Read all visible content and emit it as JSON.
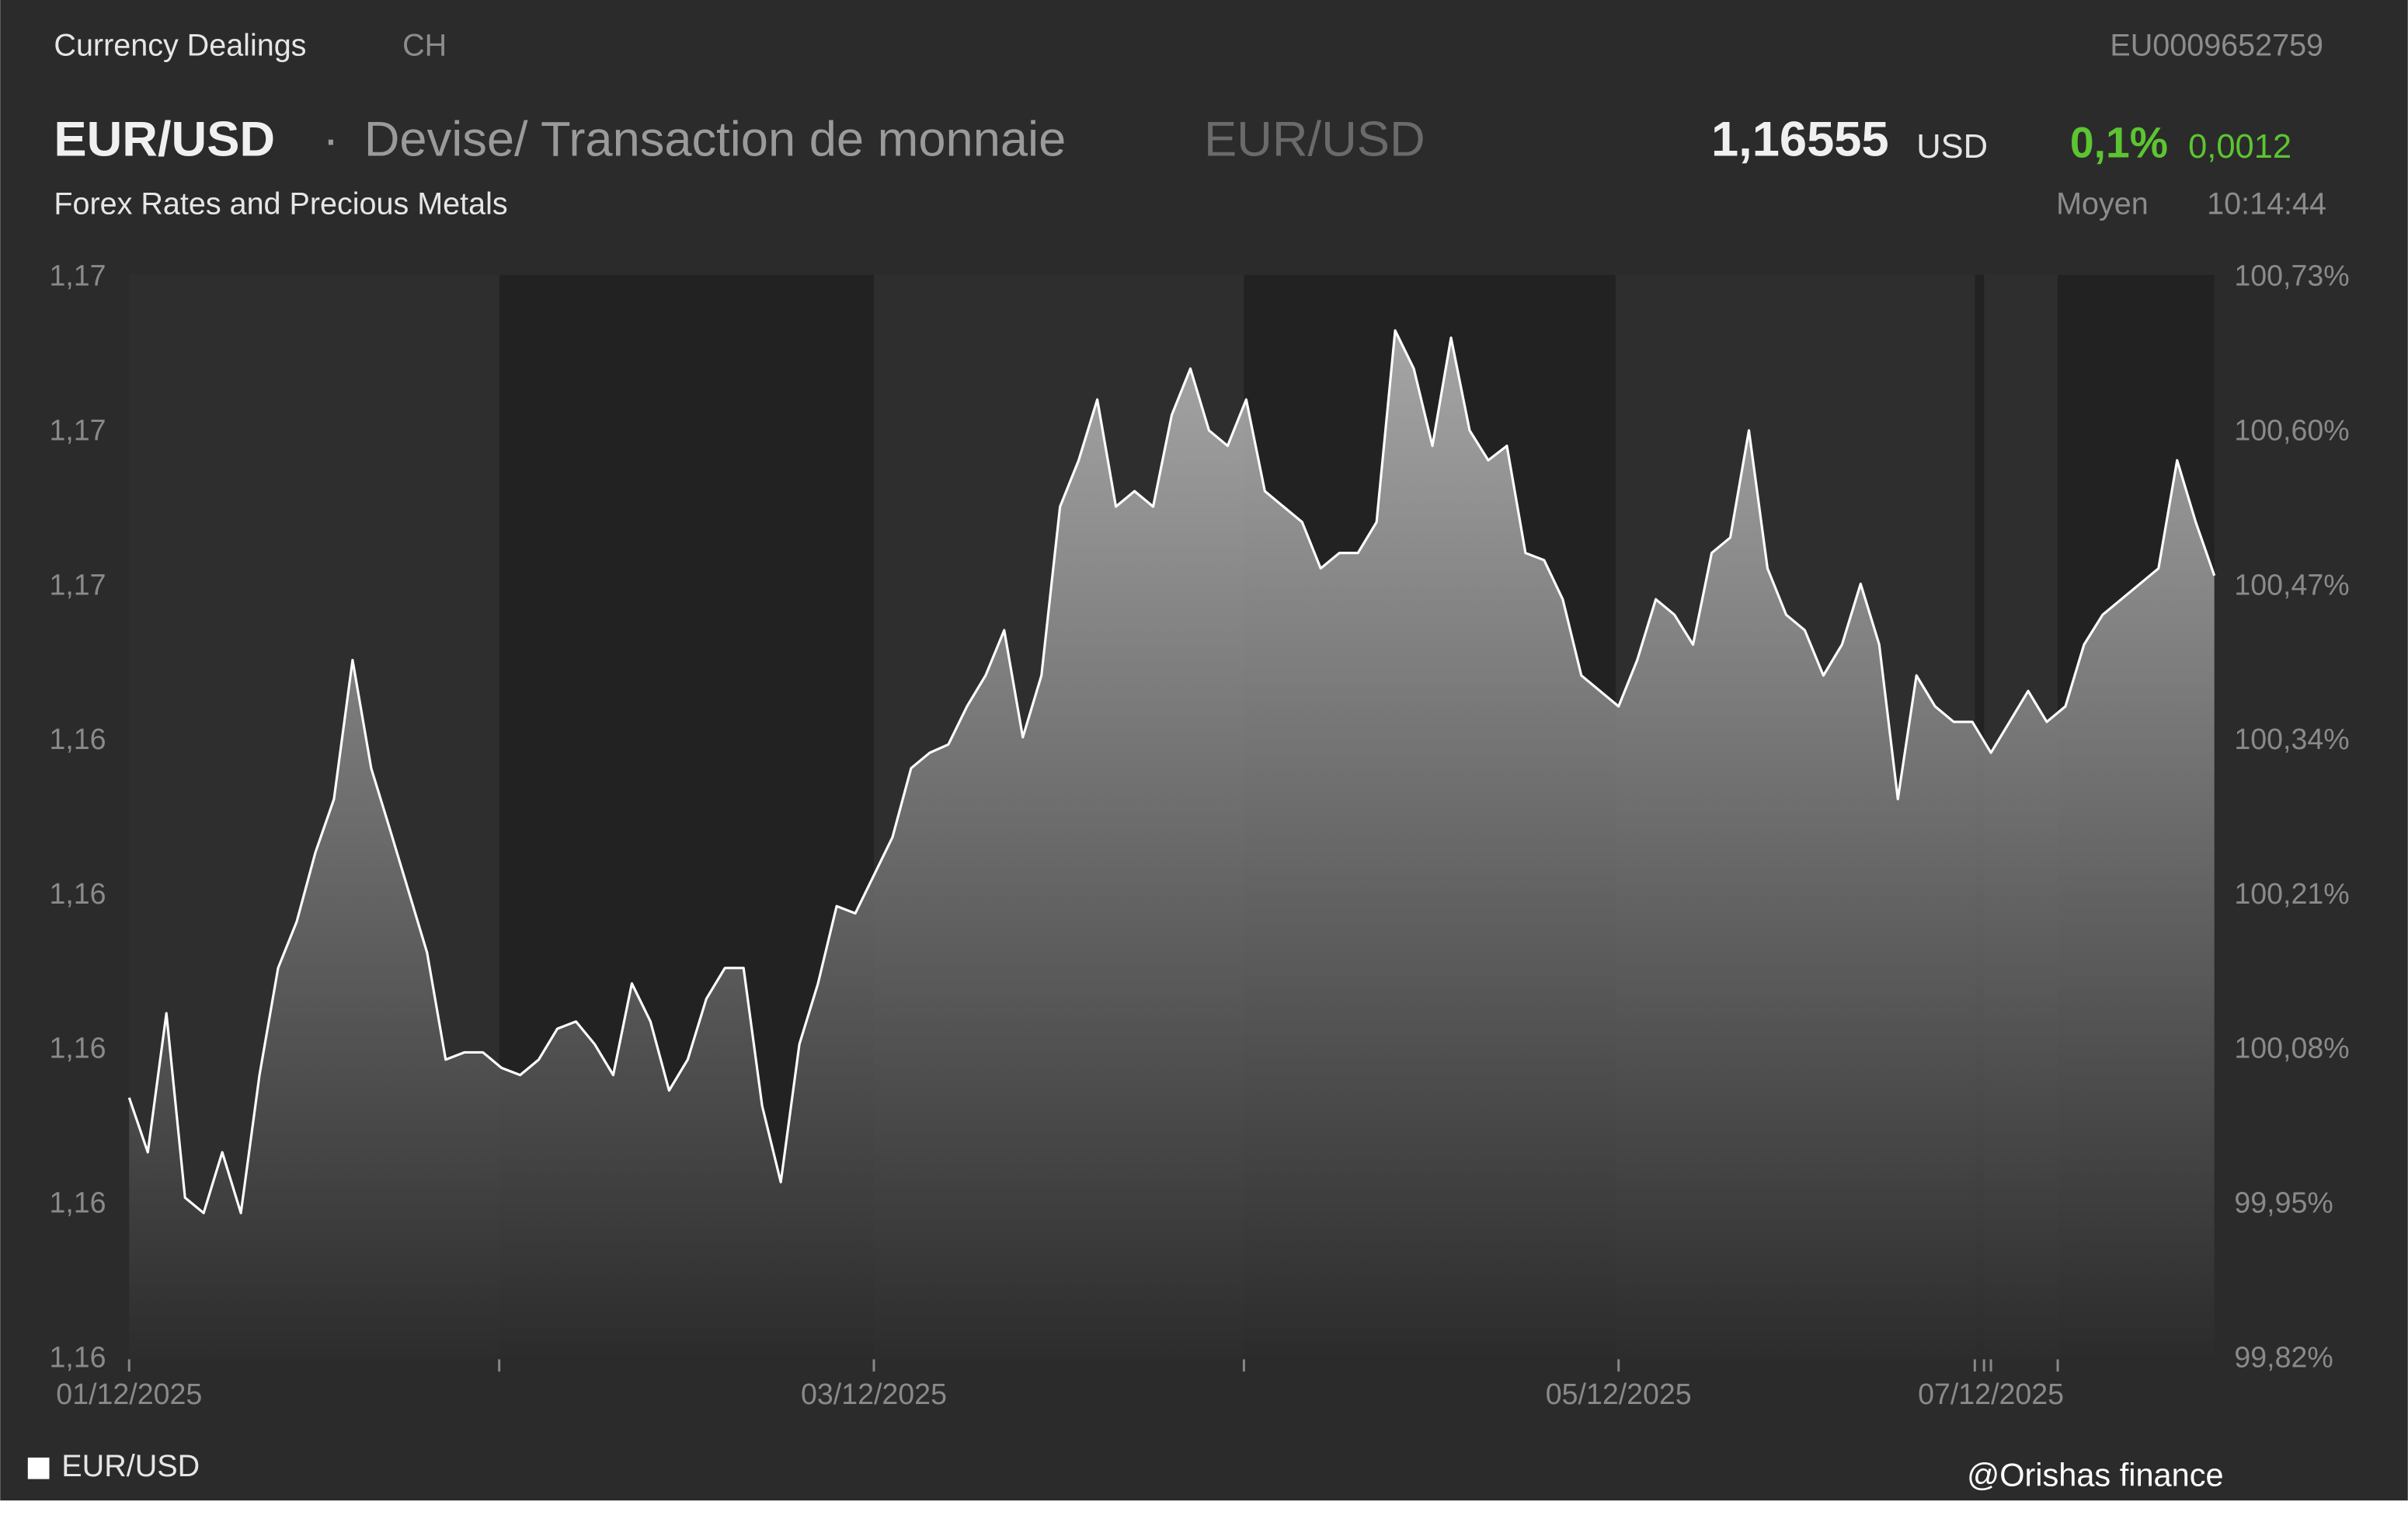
{
  "header": {
    "section": "Currency Dealings",
    "country": "CH",
    "isin": "EU0009652759",
    "symbol": "EUR/USD",
    "separator": "·",
    "description": "Devise/ Transaction de monnaie",
    "symbol_alt": "EUR/USD",
    "price": "1,16555",
    "currency": "USD",
    "change_pct": "0,1%",
    "change_abs": "0,0012",
    "subtitle": "Forex Rates and Precious Metals",
    "price_type": "Moyen",
    "time": "10:14:44"
  },
  "chart_data": {
    "type": "area",
    "categories": [
      "01/12/2025",
      null,
      null,
      null,
      null,
      null,
      null,
      null,
      null,
      null,
      null,
      null,
      null,
      null,
      null,
      null,
      null,
      null,
      null,
      null,
      null,
      null,
      null,
      null,
      null,
      null,
      null,
      null,
      null,
      null,
      null,
      null,
      null,
      null,
      null,
      null,
      null,
      null,
      null,
      null,
      "03/12/2025",
      null,
      null,
      null,
      null,
      null,
      null,
      null,
      null,
      null,
      null,
      null,
      null,
      null,
      null,
      null,
      null,
      null,
      null,
      null,
      null,
      null,
      null,
      null,
      null,
      null,
      null,
      null,
      null,
      null,
      null,
      null,
      null,
      null,
      null,
      null,
      null,
      null,
      null,
      null,
      "05/12/2025",
      null,
      null,
      null,
      null,
      null,
      null,
      null,
      null,
      null,
      null,
      null,
      null,
      null,
      null,
      null,
      null,
      null,
      null,
      null,
      "07/12/2025",
      null,
      null,
      null,
      null,
      null,
      null,
      null,
      null,
      null,
      null,
      null,
      null
    ],
    "series": [
      {
        "name": "EUR/USD",
        "color": "#ffffff",
        "values": [
          1.16004,
          1.15951,
          1.16086,
          1.15907,
          1.15892,
          1.15951,
          1.15892,
          1.16026,
          1.1613,
          1.16175,
          1.16242,
          1.16294,
          1.16429,
          1.16324,
          1.16265,
          1.16205,
          1.16145,
          1.16041,
          1.16048,
          1.16048,
          1.16033,
          1.16026,
          1.16041,
          1.16071,
          1.16078,
          1.16056,
          1.16026,
          1.16115,
          1.16078,
          1.16011,
          1.16041,
          1.161,
          1.1613,
          1.1613,
          1.15996,
          1.15922,
          1.16056,
          1.16115,
          1.1619,
          1.16183,
          1.1622,
          1.16257,
          1.16324,
          1.16339,
          1.16347,
          1.16384,
          1.16414,
          1.16458,
          1.16354,
          1.16414,
          1.16578,
          1.16623,
          1.16682,
          1.16578,
          1.16593,
          1.16578,
          1.16667,
          1.16712,
          1.16652,
          1.16637,
          1.16682,
          1.16593,
          1.16578,
          1.16563,
          1.16518,
          1.16533,
          1.16533,
          1.16563,
          1.16749,
          1.16712,
          1.16637,
          1.16742,
          1.16652,
          1.16623,
          1.16637,
          1.16533,
          1.16526,
          1.16488,
          1.16414,
          1.16399,
          1.16384,
          1.16429,
          1.16488,
          1.16473,
          1.16444,
          1.16533,
          1.16548,
          1.16652,
          1.16518,
          1.16473,
          1.16458,
          1.16414,
          1.16444,
          1.16503,
          1.16444,
          1.16294,
          1.16414,
          1.16384,
          1.16369,
          1.16369,
          1.16339,
          1.16369,
          1.16399,
          1.16369,
          1.16384,
          1.16444,
          1.16473,
          1.16488,
          1.16503,
          1.16518,
          1.16623,
          1.16563,
          1.16511
        ]
      }
    ],
    "ylim": [
      1.1575,
      1.168
    ],
    "yticks": [
      {
        "value": 1.1575,
        "label": "1,16"
      },
      {
        "value": 1.159,
        "label": "1,16"
      },
      {
        "value": 1.1605,
        "label": "1,16"
      },
      {
        "value": 1.162,
        "label": "1,16"
      },
      {
        "value": 1.1635,
        "label": "1,16"
      },
      {
        "value": 1.165,
        "label": "1,17"
      },
      {
        "value": 1.1665,
        "label": "1,17"
      },
      {
        "value": 1.168,
        "label": "1,17"
      }
    ],
    "y2lim": [
      99.82,
      100.73
    ],
    "y2ticks": [
      {
        "value": 99.82,
        "label": "99,82%"
      },
      {
        "value": 99.95,
        "label": "99,95%"
      },
      {
        "value": 100.08,
        "label": "100,08%"
      },
      {
        "value": 100.21,
        "label": "100,21%"
      },
      {
        "value": 100.34,
        "label": "100,34%"
      },
      {
        "value": 100.47,
        "label": "100,47%"
      },
      {
        "value": 100.6,
        "label": "100,60%"
      },
      {
        "value": 100.73,
        "label": "100,73%"
      }
    ],
    "legend": "bottom-left"
  },
  "watermark": "@Orishas finance"
}
